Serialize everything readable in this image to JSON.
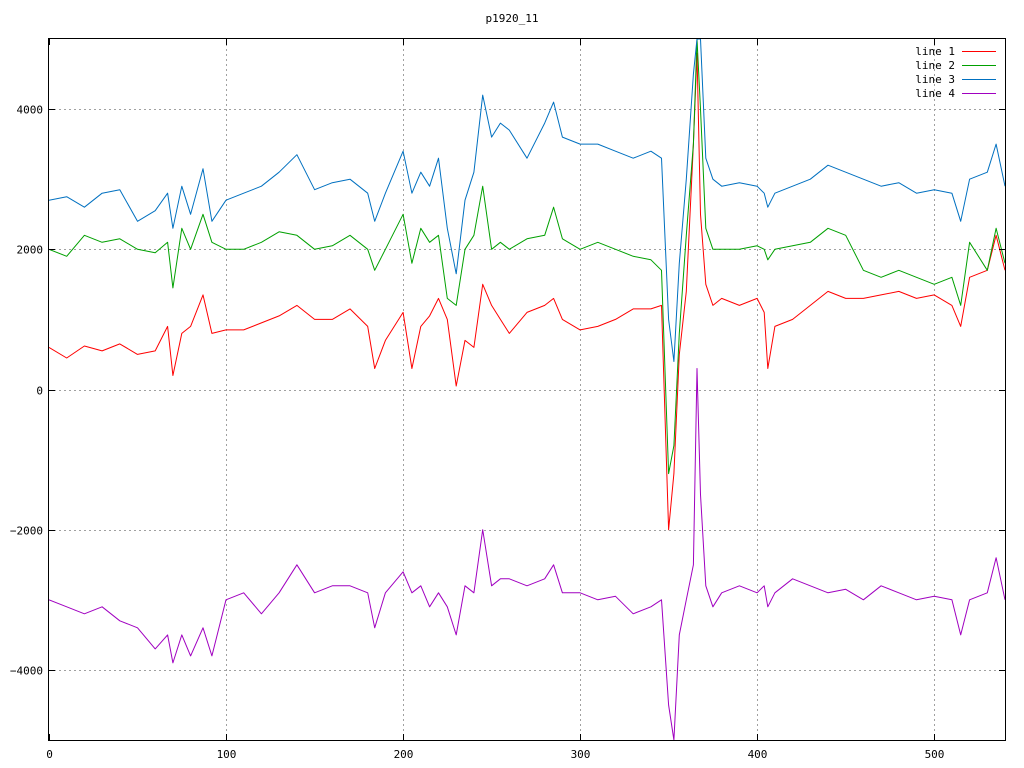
{
  "chart_data": {
    "type": "line",
    "title": "p1920_11",
    "xlabel": "",
    "ylabel": "",
    "xlim": [
      0,
      540
    ],
    "ylim": [
      -5000,
      5000
    ],
    "xticks": [
      0,
      100,
      200,
      300,
      400,
      500
    ],
    "yticks": [
      -4000,
      -2000,
      0,
      2000,
      4000
    ],
    "grid": true,
    "legend_position": "top-right",
    "x": [
      0,
      10,
      20,
      30,
      40,
      50,
      60,
      67,
      70,
      75,
      80,
      87,
      92,
      100,
      110,
      120,
      130,
      140,
      150,
      160,
      170,
      180,
      184,
      190,
      200,
      205,
      210,
      215,
      220,
      225,
      230,
      235,
      240,
      245,
      250,
      255,
      260,
      270,
      280,
      285,
      290,
      300,
      310,
      320,
      330,
      340,
      346,
      350,
      353,
      356,
      360,
      364,
      366,
      368,
      371,
      375,
      380,
      390,
      400,
      404,
      406,
      410,
      420,
      430,
      440,
      450,
      460,
      470,
      480,
      490,
      500,
      510,
      515,
      520,
      530,
      535,
      540
    ],
    "series": [
      {
        "name": "line 1",
        "color": "#ff0000",
        "values": [
          600,
          450,
          620,
          550,
          650,
          500,
          550,
          900,
          200,
          800,
          900,
          1350,
          800,
          850,
          850,
          950,
          1050,
          1200,
          1000,
          1000,
          1150,
          900,
          300,
          700,
          1100,
          300,
          900,
          1050,
          1300,
          1000,
          50,
          700,
          600,
          1500,
          1200,
          1000,
          800,
          1100,
          1200,
          1300,
          1000,
          850,
          900,
          1000,
          1150,
          1150,
          1200,
          -2000,
          -1200,
          500,
          1400,
          3500,
          4800,
          2500,
          1500,
          1200,
          1300,
          1200,
          1300,
          1100,
          300,
          900,
          1000,
          1200,
          1400,
          1300,
          1300,
          1350,
          1400,
          1300,
          1350,
          1200,
          900,
          1600,
          1700,
          2200,
          1700
        ]
      },
      {
        "name": "line 2",
        "color": "#00a000",
        "values": [
          2000,
          1900,
          2200,
          2100,
          2150,
          2000,
          1950,
          2100,
          1450,
          2300,
          2000,
          2500,
          2100,
          2000,
          2000,
          2100,
          2250,
          2200,
          2000,
          2050,
          2200,
          2000,
          1700,
          2000,
          2500,
          1800,
          2300,
          2100,
          2200,
          1300,
          1200,
          2000,
          2200,
          2900,
          2000,
          2100,
          2000,
          2150,
          2200,
          2600,
          2150,
          2000,
          2100,
          2000,
          1900,
          1850,
          1700,
          -1200,
          -800,
          800,
          2200,
          3500,
          5000,
          4000,
          2300,
          2000,
          2000,
          2000,
          2050,
          2000,
          1850,
          2000,
          2050,
          2100,
          2300,
          2200,
          1700,
          1600,
          1700,
          1600,
          1500,
          1600,
          1200,
          2100,
          1700,
          2300,
          1800
        ]
      },
      {
        "name": "line 3",
        "color": "#0070c0",
        "values": [
          2700,
          2750,
          2600,
          2800,
          2850,
          2400,
          2550,
          2800,
          2300,
          2900,
          2500,
          3150,
          2400,
          2700,
          2800,
          2900,
          3100,
          3350,
          2850,
          2950,
          3000,
          2800,
          2400,
          2800,
          3400,
          2800,
          3100,
          2900,
          3300,
          2300,
          1650,
          2700,
          3100,
          4200,
          3600,
          3800,
          3700,
          3300,
          3800,
          4100,
          3600,
          3500,
          3500,
          3400,
          3300,
          3400,
          3300,
          1000,
          400,
          1800,
          3000,
          4500,
          5000,
          5000,
          3300,
          3000,
          2900,
          2950,
          2900,
          2800,
          2600,
          2800,
          2900,
          3000,
          3200,
          3100,
          3000,
          2900,
          2950,
          2800,
          2850,
          2800,
          2400,
          3000,
          3100,
          3500,
          2900
        ]
      },
      {
        "name": "line 4",
        "color": "#a000c0",
        "values": [
          -3000,
          -3100,
          -3200,
          -3100,
          -3300,
          -3400,
          -3700,
          -3500,
          -3900,
          -3500,
          -3800,
          -3400,
          -3800,
          -3000,
          -2900,
          -3200,
          -2900,
          -2500,
          -2900,
          -2800,
          -2800,
          -2900,
          -3400,
          -2900,
          -2600,
          -2900,
          -2800,
          -3100,
          -2900,
          -3100,
          -3500,
          -2800,
          -2900,
          -2000,
          -2800,
          -2700,
          -2700,
          -2800,
          -2700,
          -2500,
          -2900,
          -2900,
          -3000,
          -2950,
          -3200,
          -3100,
          -3000,
          -4500,
          -5000,
          -3500,
          -3000,
          -2500,
          300,
          -1500,
          -2800,
          -3100,
          -2900,
          -2800,
          -2900,
          -2800,
          -3100,
          -2900,
          -2700,
          -2800,
          -2900,
          -2850,
          -3000,
          -2800,
          -2900,
          -3000,
          -2950,
          -3000,
          -3500,
          -3000,
          -2900,
          -2400,
          -3000
        ]
      }
    ]
  }
}
